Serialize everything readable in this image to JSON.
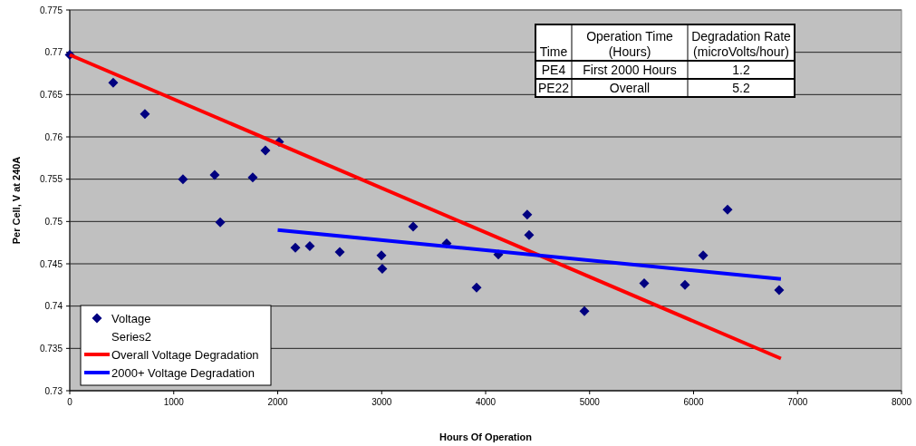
{
  "chart_data": {
    "type": "scatter",
    "xlabel": "Hours Of Operation",
    "ylabel": "Per Cell, V at 240A",
    "xlim": [
      0,
      8000
    ],
    "xticks": [
      0,
      1000,
      2000,
      3000,
      4000,
      5000,
      6000,
      7000,
      8000
    ],
    "ylim": [
      0.73,
      0.775
    ],
    "yticks": [
      0.73,
      0.735,
      0.74,
      0.745,
      0.75,
      0.755,
      0.76,
      0.765,
      0.77,
      0.775
    ],
    "grid": "y",
    "legend": "bottom left",
    "series": [
      {
        "name": "Voltage",
        "marker": "diamond",
        "color": "#000080",
        "x": [
          0,
          418,
          723,
          1089,
          1394,
          1447,
          1760,
          1882,
          2013,
          2170,
          2309,
          2597,
          2998,
          3006,
          3303,
          3625,
          3913,
          4122,
          4400,
          4418,
          4950,
          5525,
          5917,
          6092,
          6327,
          6823
        ],
        "values": [
          0.7697,
          0.7664,
          0.7627,
          0.755,
          0.7555,
          0.7499,
          0.7552,
          0.7584,
          0.7594,
          0.7469,
          0.7471,
          0.7464,
          0.746,
          0.7444,
          0.7494,
          0.7474,
          0.7422,
          0.7461,
          0.7508,
          0.7484,
          0.7394,
          0.7427,
          0.7425,
          0.746,
          0.7514,
          0.7419
        ]
      },
      {
        "name": "Series2",
        "marker": "none"
      },
      {
        "name": "Overall Voltage Degradation",
        "type": "line",
        "color": "#ff0000",
        "x": [
          0,
          6840
        ],
        "values": [
          0.7697,
          0.7338
        ]
      },
      {
        "name": "2000+ Voltage Degradation",
        "type": "line",
        "color": "#0000ff",
        "x": [
          2000,
          6840
        ],
        "values": [
          0.749,
          0.7432
        ]
      }
    ],
    "annotations": [
      "Time",
      "Operation Time\n(Hours)",
      "Degradation Rate\n(microVolts/hour)",
      "PE4",
      "First 2000 Hours",
      "1.2",
      "PE22",
      "Overall",
      "5.2"
    ]
  }
}
